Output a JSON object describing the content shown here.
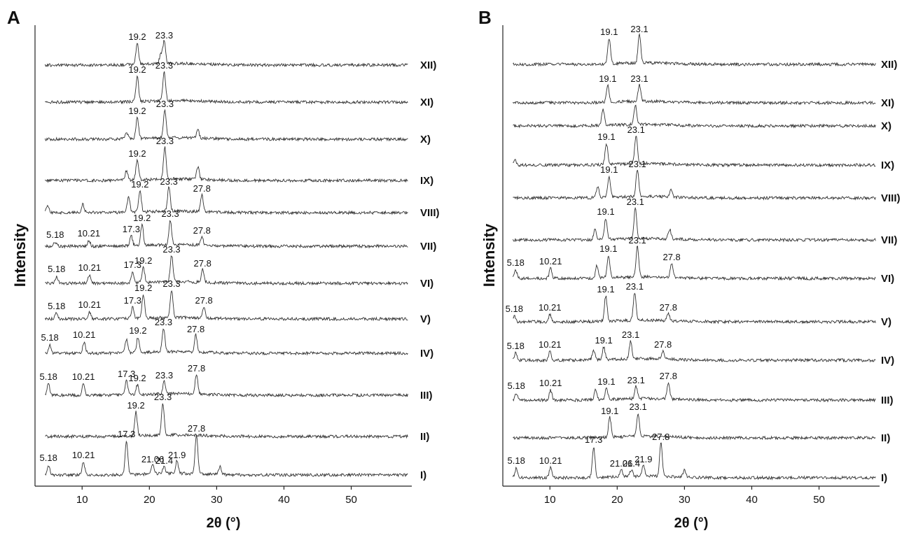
{
  "chart_data": [
    {
      "type": "line",
      "panel": "A",
      "xlabel": "2θ (°)",
      "ylabel": "Intensity",
      "xlim": [
        3,
        59
      ],
      "x_ticks": [
        10,
        20,
        30,
        40,
        50
      ],
      "grid": false,
      "series": [
        {
          "name": "XII)",
          "peak_labels": [
            {
              "x": 18.2,
              "text": "19.2"
            },
            {
              "x": 22.2,
              "text": "23.3"
            }
          ],
          "peaks": [
            {
              "x": 18.2,
              "h": 30
            },
            {
              "x": 22.2,
              "h": 32
            },
            {
              "x": 21.7,
              "h": 14
            }
          ]
        },
        {
          "name": "XI)",
          "peak_labels": [
            {
              "x": 18.2,
              "text": "19.2"
            },
            {
              "x": 22.2,
              "text": "23.3"
            }
          ],
          "peaks": [
            {
              "x": 18.2,
              "h": 36
            },
            {
              "x": 22.2,
              "h": 42
            }
          ]
        },
        {
          "name": "X)",
          "peak_labels": [
            {
              "x": 18.2,
              "text": "19.2"
            },
            {
              "x": 22.3,
              "text": "23.3"
            }
          ],
          "peaks": [
            {
              "x": 16.6,
              "h": 10
            },
            {
              "x": 18.2,
              "h": 30
            },
            {
              "x": 22.3,
              "h": 40
            },
            {
              "x": 27.2,
              "h": 12
            }
          ]
        },
        {
          "name": "IX)",
          "peak_labels": [
            {
              "x": 18.2,
              "text": "19.2"
            },
            {
              "x": 22.3,
              "text": "23.3"
            }
          ],
          "peaks": [
            {
              "x": 16.6,
              "h": 14
            },
            {
              "x": 18.2,
              "h": 28
            },
            {
              "x": 22.3,
              "h": 46
            },
            {
              "x": 27.2,
              "h": 18
            }
          ]
        },
        {
          "name": "VIII)",
          "peak_labels": [
            {
              "x": 18.6,
              "text": "19.2"
            },
            {
              "x": 22.9,
              "text": "23.3"
            },
            {
              "x": 27.8,
              "text": "27.8"
            }
          ],
          "peaks": [
            {
              "x": 4.9,
              "h": 10
            },
            {
              "x": 10.1,
              "h": 12
            },
            {
              "x": 16.9,
              "h": 22
            },
            {
              "x": 18.6,
              "h": 30
            },
            {
              "x": 22.9,
              "h": 34
            },
            {
              "x": 27.8,
              "h": 24
            }
          ]
        },
        {
          "name": "VII)",
          "peak_labels": [
            {
              "x": 6.0,
              "text": "5.18"
            },
            {
              "x": 11.0,
              "text": "10.21"
            },
            {
              "x": 17.3,
              "text": "17.3"
            },
            {
              "x": 18.9,
              "text": "19.2"
            },
            {
              "x": 23.1,
              "text": "23.3"
            },
            {
              "x": 27.8,
              "text": "27.8"
            }
          ],
          "peaks": [
            {
              "x": 6.0,
              "h": 6
            },
            {
              "x": 11.0,
              "h": 8
            },
            {
              "x": 17.3,
              "h": 14
            },
            {
              "x": 18.9,
              "h": 30
            },
            {
              "x": 23.1,
              "h": 36
            },
            {
              "x": 27.8,
              "h": 12
            }
          ]
        },
        {
          "name": "VI)",
          "peak_labels": [
            {
              "x": 6.2,
              "text": "5.18"
            },
            {
              "x": 11.1,
              "text": "10.21"
            },
            {
              "x": 17.5,
              "text": "17.3"
            },
            {
              "x": 19.1,
              "text": "19.2"
            },
            {
              "x": 23.3,
              "text": "23.3"
            },
            {
              "x": 27.9,
              "text": "27.8"
            }
          ],
          "peaks": [
            {
              "x": 6.2,
              "h": 10
            },
            {
              "x": 11.1,
              "h": 12
            },
            {
              "x": 17.5,
              "h": 16
            },
            {
              "x": 19.1,
              "h": 22
            },
            {
              "x": 23.3,
              "h": 38
            },
            {
              "x": 27.9,
              "h": 18
            }
          ]
        },
        {
          "name": "V)",
          "peak_labels": [
            {
              "x": 6.2,
              "text": "5.18"
            },
            {
              "x": 11.1,
              "text": "10.21"
            },
            {
              "x": 17.5,
              "text": "17.3"
            },
            {
              "x": 19.1,
              "text": "19.2"
            },
            {
              "x": 23.3,
              "text": "23.3"
            },
            {
              "x": 28.1,
              "text": "27.8"
            }
          ],
          "peaks": [
            {
              "x": 6.2,
              "h": 8
            },
            {
              "x": 11.1,
              "h": 10
            },
            {
              "x": 17.5,
              "h": 16
            },
            {
              "x": 19.1,
              "h": 34
            },
            {
              "x": 23.3,
              "h": 40
            },
            {
              "x": 28.1,
              "h": 16
            }
          ]
        },
        {
          "name": "IV)",
          "peak_labels": [
            {
              "x": 5.2,
              "text": "5.18"
            },
            {
              "x": 10.3,
              "text": "10.21"
            },
            {
              "x": 18.3,
              "text": "19.2"
            },
            {
              "x": 22.1,
              "text": "23.3"
            },
            {
              "x": 26.9,
              "text": "27.8"
            }
          ],
          "peaks": [
            {
              "x": 5.2,
              "h": 12
            },
            {
              "x": 10.3,
              "h": 16
            },
            {
              "x": 16.6,
              "h": 20
            },
            {
              "x": 18.3,
              "h": 22
            },
            {
              "x": 22.1,
              "h": 34
            },
            {
              "x": 26.9,
              "h": 24
            }
          ]
        },
        {
          "name": "III)",
          "peak_labels": [
            {
              "x": 5.0,
              "text": "5.18"
            },
            {
              "x": 10.2,
              "text": "10.21"
            },
            {
              "x": 16.6,
              "text": "17.3"
            },
            {
              "x": 18.2,
              "text": "19.2"
            },
            {
              "x": 22.2,
              "text": "23.3"
            },
            {
              "x": 27.0,
              "text": "27.8"
            }
          ],
          "peaks": [
            {
              "x": 5.0,
              "h": 16
            },
            {
              "x": 10.2,
              "h": 16
            },
            {
              "x": 16.6,
              "h": 20
            },
            {
              "x": 18.2,
              "h": 14
            },
            {
              "x": 22.2,
              "h": 18
            },
            {
              "x": 27.0,
              "h": 28
            }
          ]
        },
        {
          "name": "II)",
          "peak_labels": [
            {
              "x": 18.0,
              "text": "19.2"
            },
            {
              "x": 22.0,
              "text": "23.3"
            }
          ],
          "peaks": [
            {
              "x": 18.0,
              "h": 34
            },
            {
              "x": 22.0,
              "h": 46
            }
          ]
        },
        {
          "name": "I)",
          "peak_labels": [
            {
              "x": 5.0,
              "text": "5.18"
            },
            {
              "x": 10.2,
              "text": "10.21"
            },
            {
              "x": 16.6,
              "text": "17.3"
            },
            {
              "x": 20.5,
              "text": "21.06"
            },
            {
              "x": 22.2,
              "text": "21.4"
            },
            {
              "x": 24.1,
              "text": "21.9"
            },
            {
              "x": 27.0,
              "text": "27.8"
            }
          ],
          "peaks": [
            {
              "x": 5.0,
              "h": 14
            },
            {
              "x": 10.2,
              "h": 18
            },
            {
              "x": 16.6,
              "h": 48
            },
            {
              "x": 20.5,
              "h": 12
            },
            {
              "x": 22.2,
              "h": 10
            },
            {
              "x": 24.1,
              "h": 18
            },
            {
              "x": 27.0,
              "h": 56
            },
            {
              "x": 30.5,
              "h": 12
            }
          ]
        }
      ]
    },
    {
      "type": "line",
      "panel": "B",
      "xlabel": "2θ (°)",
      "ylabel": "Intensity",
      "xlim": [
        3,
        59
      ],
      "x_ticks": [
        10,
        20,
        30,
        40,
        50
      ],
      "grid": false,
      "series": [
        {
          "name": "XII)",
          "peak_labels": [
            {
              "x": 18.8,
              "text": "19.1"
            },
            {
              "x": 23.3,
              "text": "23.1"
            }
          ],
          "peaks": [
            {
              "x": 18.8,
              "h": 36
            },
            {
              "x": 23.3,
              "h": 40
            }
          ]
        },
        {
          "name": "XI)",
          "peak_labels": [
            {
              "x": 18.6,
              "text": "19.1"
            },
            {
              "x": 23.3,
              "text": "23.1"
            }
          ],
          "peaks": [
            {
              "x": 18.6,
              "h": 24
            },
            {
              "x": 23.3,
              "h": 24
            }
          ]
        },
        {
          "name": "X)",
          "peak_labels": [],
          "peaks": [
            {
              "x": 17.9,
              "h": 24
            },
            {
              "x": 22.7,
              "h": 28
            }
          ]
        },
        {
          "name": "IX)",
          "peak_labels": [
            {
              "x": 18.4,
              "text": "19.1"
            },
            {
              "x": 22.8,
              "text": "23.1"
            }
          ],
          "peaks": [
            {
              "x": 4.8,
              "h": 8
            },
            {
              "x": 18.4,
              "h": 30
            },
            {
              "x": 22.8,
              "h": 40
            }
          ]
        },
        {
          "name": "VIII)",
          "peak_labels": [
            {
              "x": 18.8,
              "text": "19.1"
            },
            {
              "x": 23.0,
              "text": "23.1"
            }
          ],
          "peaks": [
            {
              "x": 17.1,
              "h": 16
            },
            {
              "x": 18.8,
              "h": 30
            },
            {
              "x": 23.0,
              "h": 38
            },
            {
              "x": 28.0,
              "h": 12
            }
          ]
        },
        {
          "name": "VII)",
          "peak_labels": [
            {
              "x": 18.3,
              "text": "19.1"
            },
            {
              "x": 22.7,
              "text": "23.1"
            }
          ],
          "peaks": [
            {
              "x": 16.7,
              "h": 14
            },
            {
              "x": 18.3,
              "h": 30
            },
            {
              "x": 22.7,
              "h": 44
            },
            {
              "x": 27.8,
              "h": 14
            }
          ]
        },
        {
          "name": "VI)",
          "peak_labels": [
            {
              "x": 4.9,
              "text": "5.18"
            },
            {
              "x": 10.1,
              "text": "10.21"
            },
            {
              "x": 18.7,
              "text": "19.1"
            },
            {
              "x": 23.0,
              "text": "23.1"
            },
            {
              "x": 28.1,
              "text": "27.8"
            }
          ],
          "peaks": [
            {
              "x": 4.9,
              "h": 12
            },
            {
              "x": 10.1,
              "h": 14
            },
            {
              "x": 17.0,
              "h": 18
            },
            {
              "x": 18.7,
              "h": 32
            },
            {
              "x": 23.0,
              "h": 44
            },
            {
              "x": 28.1,
              "h": 20
            }
          ]
        },
        {
          "name": "V)",
          "peak_labels": [
            {
              "x": 4.7,
              "text": "5.18"
            },
            {
              "x": 10.0,
              "text": "10.21"
            },
            {
              "x": 18.3,
              "text": "19.1"
            },
            {
              "x": 22.6,
              "text": "23.1"
            },
            {
              "x": 27.6,
              "text": "27.8"
            }
          ],
          "peaks": [
            {
              "x": 4.7,
              "h": 8
            },
            {
              "x": 10.0,
              "h": 10
            },
            {
              "x": 18.3,
              "h": 36
            },
            {
              "x": 22.6,
              "h": 40
            },
            {
              "x": 27.6,
              "h": 10
            }
          ]
        },
        {
          "name": "IV)",
          "peak_labels": [
            {
              "x": 4.9,
              "text": "5.18"
            },
            {
              "x": 10.0,
              "text": "10.21"
            },
            {
              "x": 18.0,
              "text": "19.1"
            },
            {
              "x": 22.0,
              "text": "23.1"
            },
            {
              "x": 26.8,
              "text": "27.8"
            }
          ],
          "peaks": [
            {
              "x": 4.9,
              "h": 10
            },
            {
              "x": 10.0,
              "h": 12
            },
            {
              "x": 16.5,
              "h": 14
            },
            {
              "x": 18.0,
              "h": 18
            },
            {
              "x": 22.0,
              "h": 26
            },
            {
              "x": 26.8,
              "h": 12
            }
          ]
        },
        {
          "name": "III)",
          "peak_labels": [
            {
              "x": 5.0,
              "text": "5.18"
            },
            {
              "x": 10.1,
              "text": "10.21"
            },
            {
              "x": 18.4,
              "text": "19.1"
            },
            {
              "x": 22.8,
              "text": "23.1"
            },
            {
              "x": 27.6,
              "text": "27.8"
            }
          ],
          "peaks": [
            {
              "x": 5.0,
              "h": 10
            },
            {
              "x": 10.1,
              "h": 14
            },
            {
              "x": 16.8,
              "h": 14
            },
            {
              "x": 18.4,
              "h": 16
            },
            {
              "x": 22.8,
              "h": 18
            },
            {
              "x": 27.6,
              "h": 24
            }
          ]
        },
        {
          "name": "II)",
          "peak_labels": [
            {
              "x": 18.9,
              "text": "19.1"
            },
            {
              "x": 23.1,
              "text": "23.1"
            }
          ],
          "peaks": [
            {
              "x": 18.9,
              "h": 28
            },
            {
              "x": 23.1,
              "h": 34
            }
          ]
        },
        {
          "name": "I)",
          "peak_labels": [
            {
              "x": 5.0,
              "text": "5.18"
            },
            {
              "x": 10.1,
              "text": "10.21"
            },
            {
              "x": 16.5,
              "text": "17.3"
            },
            {
              "x": 20.6,
              "text": "21.06"
            },
            {
              "x": 22.1,
              "text": "21.4"
            },
            {
              "x": 23.9,
              "text": "21.9"
            },
            {
              "x": 26.5,
              "text": "27.8"
            }
          ],
          "peaks": [
            {
              "x": 5.0,
              "h": 14
            },
            {
              "x": 10.1,
              "h": 14
            },
            {
              "x": 16.5,
              "h": 44
            },
            {
              "x": 20.6,
              "h": 10
            },
            {
              "x": 22.1,
              "h": 10
            },
            {
              "x": 23.9,
              "h": 16
            },
            {
              "x": 26.5,
              "h": 48
            },
            {
              "x": 30.0,
              "h": 10
            }
          ]
        }
      ]
    }
  ]
}
